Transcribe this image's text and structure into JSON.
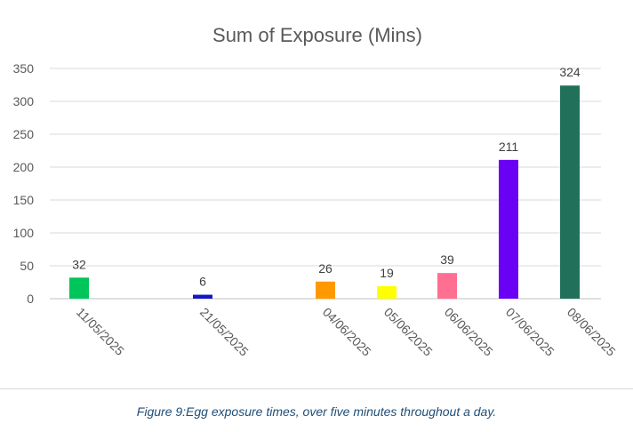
{
  "chart_data": {
    "type": "bar",
    "title": "Sum of Exposure (Mins)",
    "xlabel": "",
    "ylabel": "",
    "categories": [
      "11/05/2025",
      "21/05/2025",
      "04/06/2025",
      "05/06/2025",
      "06/06/2025",
      "07/06/2025",
      "08/06/2025"
    ],
    "values": [
      32,
      6,
      26,
      19,
      39,
      211,
      324
    ],
    "data_labels": [
      "32",
      "6",
      "26",
      "19",
      "39",
      "211",
      "324"
    ],
    "bar_colors": [
      "#00c55a",
      "#1515c8",
      "#ff9900",
      "#ffff00",
      "#ff6f91",
      "#6a00f4",
      "#21715a"
    ],
    "ylim": [
      0,
      350
    ],
    "yticks": [
      0,
      50,
      100,
      150,
      200,
      250,
      300,
      350
    ],
    "ytick_labels": [
      "0",
      "50",
      "100",
      "150",
      "200",
      "250",
      "300",
      "350"
    ],
    "grid": true,
    "legend": "none"
  },
  "caption": "Figure 9:Egg exposure times, over five minutes throughout a day."
}
